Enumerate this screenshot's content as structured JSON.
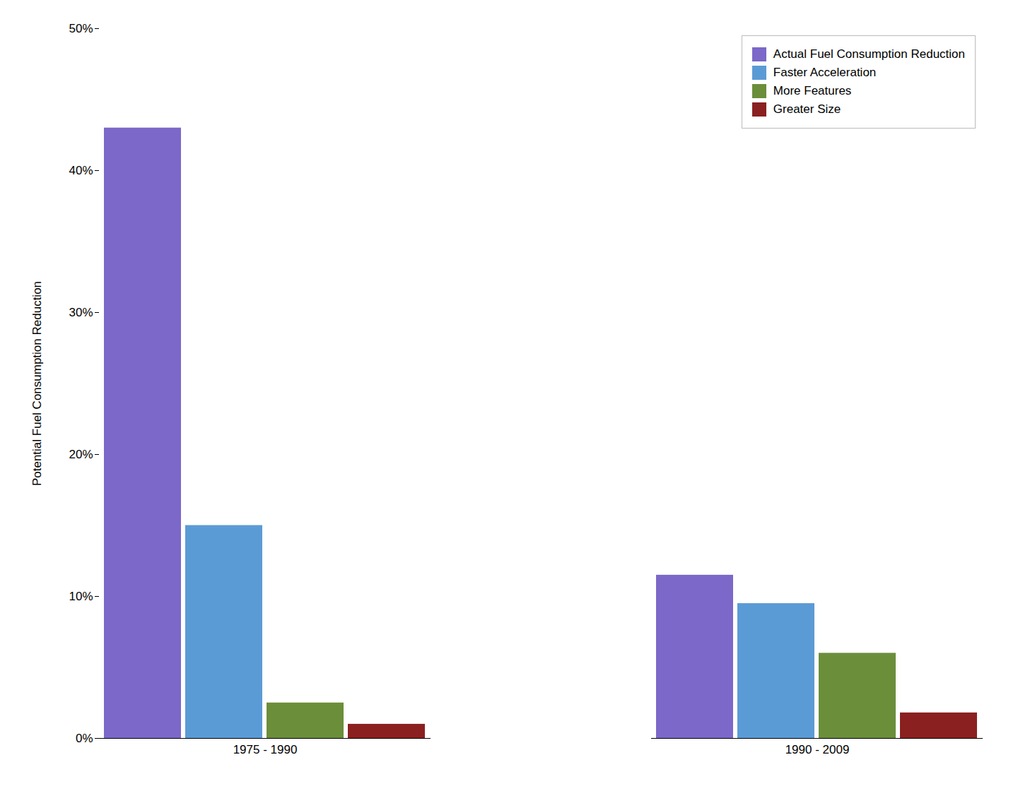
{
  "chart_data": {
    "type": "bar",
    "ylabel": "Potential Fuel Consumption Reduction",
    "categories": [
      "1975 - 1990",
      "1990 - 2009"
    ],
    "series": [
      {
        "name": "Actual Fuel Consumption Reduction",
        "color": "#7B68C8",
        "values": [
          43,
          11.5
        ]
      },
      {
        "name": "Faster Acceleration",
        "color": "#5B9BD5",
        "values": [
          15,
          9.5
        ]
      },
      {
        "name": "More Features",
        "color": "#6B8E3A",
        "values": [
          2.5,
          6
        ]
      },
      {
        "name": "Greater Size",
        "color": "#8B2020",
        "values": [
          1,
          1.8
        ]
      }
    ],
    "ylim": [
      0,
      50
    ],
    "yticks": [
      {
        "value": 0,
        "label": "0%"
      },
      {
        "value": 10,
        "label": "10%"
      },
      {
        "value": 20,
        "label": "20%"
      },
      {
        "value": 30,
        "label": "30%"
      },
      {
        "value": 40,
        "label": "40%"
      },
      {
        "value": 50,
        "label": "50%"
      }
    ],
    "grid": false,
    "legend": "upper right"
  }
}
